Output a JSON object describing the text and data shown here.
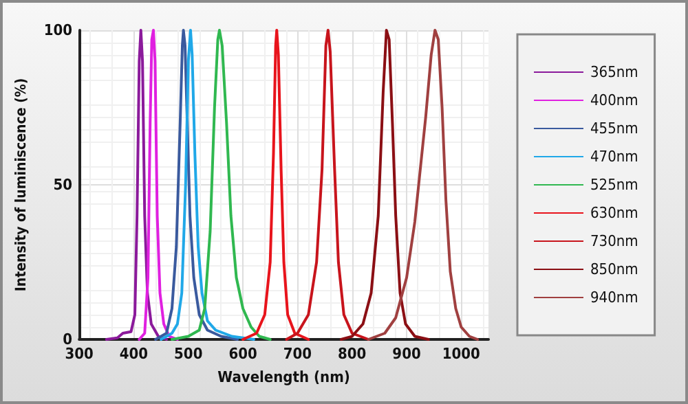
{
  "chart_data": {
    "type": "line",
    "xlabel": "Wavelength (nm)",
    "ylabel": "Intensity of luminiscence (%)",
    "xlim": [
      300,
      1050
    ],
    "xticks": [
      300,
      400,
      500,
      600,
      700,
      800,
      900,
      1000
    ],
    "ylim": [
      0,
      100
    ],
    "yticks": [
      0,
      50,
      100
    ],
    "grid": true,
    "legend": "right",
    "marker": "none",
    "line_style": "solid",
    "series": [
      {
        "name": "365nm",
        "color": "#8b1a9b",
        "x": [
          350,
          370,
          380,
          395,
          402,
          406,
          410,
          413,
          416,
          420,
          425,
          432,
          445,
          460
        ],
        "values": [
          0,
          0.5,
          2,
          2.5,
          8,
          40,
          90,
          100,
          90,
          40,
          15,
          5,
          1,
          0
        ]
      },
      {
        "name": "400nm",
        "color": "#e020e0",
        "x": [
          410,
          420,
          426,
          430,
          433,
          436,
          439,
          443,
          448,
          455,
          465,
          480
        ],
        "values": [
          0,
          2,
          20,
          70,
          97,
          100,
          90,
          40,
          15,
          5,
          1,
          0
        ]
      },
      {
        "name": "455nm",
        "color": "#3a5a9e",
        "x": [
          440,
          460,
          470,
          478,
          485,
          489,
          491,
          494,
          498,
          503,
          510,
          520,
          535,
          560,
          590
        ],
        "values": [
          0,
          2,
          10,
          30,
          70,
          95,
          100,
          95,
          70,
          40,
          20,
          8,
          3,
          1,
          0
        ]
      },
      {
        "name": "470nm",
        "color": "#20a8e8",
        "x": [
          450,
          470,
          480,
          488,
          495,
          500,
          504,
          507,
          512,
          518,
          525,
          535,
          550,
          580,
          620
        ],
        "values": [
          0,
          2,
          5,
          15,
          50,
          90,
          100,
          92,
          60,
          30,
          15,
          6,
          3,
          1,
          0
        ]
      },
      {
        "name": "525nm",
        "color": "#30b850",
        "x": [
          470,
          500,
          520,
          530,
          540,
          548,
          554,
          557,
          562,
          570,
          578,
          588,
          600,
          615,
          630,
          650
        ],
        "values": [
          0,
          1,
          3,
          10,
          35,
          75,
          97,
          100,
          95,
          70,
          40,
          20,
          10,
          4,
          1,
          0
        ]
      },
      {
        "name": "630nm",
        "color": "#e8141c",
        "x": [
          600,
          625,
          640,
          650,
          656,
          660,
          662,
          665,
          670,
          675,
          682,
          695,
          720
        ],
        "values": [
          0,
          2,
          8,
          25,
          60,
          95,
          100,
          92,
          55,
          25,
          8,
          2,
          0
        ]
      },
      {
        "name": "730nm",
        "color": "#c8141c",
        "x": [
          680,
          700,
          720,
          735,
          745,
          752,
          756,
          760,
          768,
          775,
          785,
          800,
          830
        ],
        "values": [
          0,
          2,
          8,
          25,
          55,
          95,
          100,
          93,
          55,
          25,
          8,
          2,
          0
        ]
      },
      {
        "name": "850nm",
        "color": "#8b0f14",
        "x": [
          780,
          800,
          820,
          835,
          848,
          857,
          863,
          868,
          874,
          880,
          888,
          898,
          915,
          940
        ],
        "values": [
          0,
          1,
          5,
          15,
          40,
          80,
          100,
          97,
          70,
          40,
          15,
          5,
          1,
          0
        ]
      },
      {
        "name": "940nm",
        "color": "#a04040",
        "x": [
          830,
          860,
          880,
          900,
          915,
          925,
          935,
          945,
          952,
          958,
          965,
          972,
          980,
          990,
          1000,
          1015,
          1030
        ],
        "values": [
          0,
          2,
          7,
          20,
          38,
          55,
          72,
          92,
          100,
          97,
          75,
          45,
          22,
          10,
          4,
          1,
          0
        ]
      }
    ]
  }
}
